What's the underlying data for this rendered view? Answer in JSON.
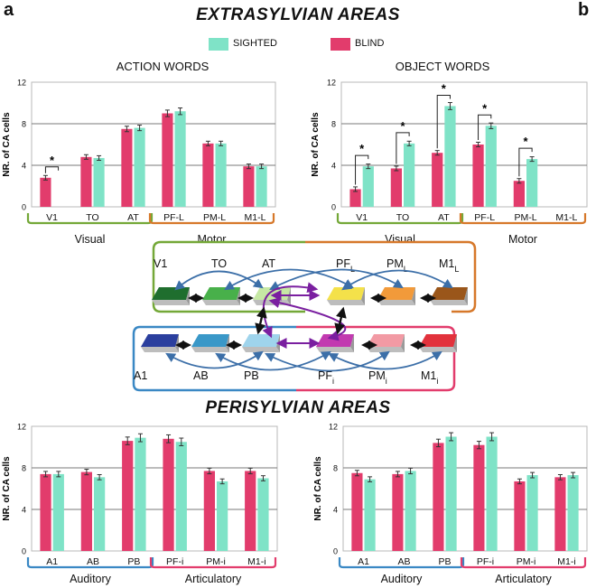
{
  "panel_labels": {
    "a": "a",
    "b": "b"
  },
  "titles": {
    "extrasylvian": "EXTRASYLVIAN AREAS",
    "perisylvian": "PERISYLVIAN AREAS"
  },
  "legend": {
    "sighted": "SIGHTED",
    "blind": "BLIND"
  },
  "colors": {
    "blind": "#e23c6c",
    "sighted": "#7fe3c7",
    "visual_group": "#74a838",
    "motor_group": "#d6782a",
    "auditory_group": "#3a88c4",
    "articulatory_group": "#e23c6c",
    "arrow_blue": "#3c6fa8",
    "arrow_purple": "#7a1fa0",
    "arrow_black": "#111111"
  },
  "chart_data": [
    {
      "type": "bar",
      "title": "ACTION WORDS",
      "ylabel": "NR. of CA cells",
      "ylim": [
        0,
        12
      ],
      "yticks": [
        0,
        4,
        8,
        12
      ],
      "categories": [
        "V1",
        "TO",
        "AT",
        "PF-L",
        "PM-L",
        "M1-L"
      ],
      "series": [
        {
          "name": "BLIND",
          "values": [
            2.8,
            4.8,
            7.5,
            9.0,
            6.1,
            3.9
          ]
        },
        {
          "name": "SIGHTED",
          "values": [
            0,
            4.7,
            7.6,
            9.2,
            6.1,
            3.9
          ]
        }
      ],
      "significance": [
        {
          "category": "V1",
          "label": "*"
        }
      ],
      "groups": [
        {
          "label": "Visual",
          "from": 0,
          "to": 2
        },
        {
          "label": "Motor",
          "from": 3,
          "to": 5
        }
      ]
    },
    {
      "type": "bar",
      "title": "OBJECT WORDS",
      "ylabel": "NR. of CA cells",
      "ylim": [
        0,
        12
      ],
      "yticks": [
        0,
        4,
        8,
        12
      ],
      "categories": [
        "V1",
        "TO",
        "AT",
        "PF-L",
        "PM-L",
        "M1-L"
      ],
      "series": [
        {
          "name": "BLIND",
          "values": [
            1.7,
            3.7,
            5.2,
            6.0,
            2.5,
            0
          ]
        },
        {
          "name": "SIGHTED",
          "values": [
            3.9,
            6.1,
            9.7,
            7.8,
            4.6,
            0
          ]
        }
      ],
      "significance": [
        {
          "category": "V1",
          "label": "*"
        },
        {
          "category": "TO",
          "label": "*"
        },
        {
          "category": "AT",
          "label": "*"
        },
        {
          "category": "PF-L",
          "label": "*"
        },
        {
          "category": "PM-L",
          "label": "*"
        }
      ],
      "groups": [
        {
          "label": "Visual",
          "from": 0,
          "to": 2
        },
        {
          "label": "Motor",
          "from": 3,
          "to": 5
        }
      ]
    },
    {
      "type": "bar",
      "title": "",
      "ylabel": "NR. of CA cells",
      "ylim": [
        0,
        12
      ],
      "yticks": [
        0,
        4,
        8,
        12
      ],
      "categories": [
        "A1",
        "AB",
        "PB",
        "PF-i",
        "PM-i",
        "M1-i"
      ],
      "series": [
        {
          "name": "BLIND",
          "values": [
            7.4,
            7.6,
            10.6,
            10.8,
            7.7,
            7.7
          ]
        },
        {
          "name": "SIGHTED",
          "values": [
            7.4,
            7.1,
            10.9,
            10.5,
            6.7,
            7.0
          ]
        }
      ],
      "significance": [],
      "groups": [
        {
          "label": "Auditory",
          "from": 0,
          "to": 2
        },
        {
          "label": "Articulatory",
          "from": 3,
          "to": 5
        }
      ]
    },
    {
      "type": "bar",
      "title": "",
      "ylabel": "NR. of CA cells",
      "ylim": [
        0,
        12
      ],
      "yticks": [
        0,
        4,
        8,
        12
      ],
      "categories": [
        "A1",
        "AB",
        "PB",
        "PF-i",
        "PM-i",
        "M1-i"
      ],
      "series": [
        {
          "name": "BLIND",
          "values": [
            7.5,
            7.4,
            10.4,
            10.2,
            6.7,
            7.1
          ]
        },
        {
          "name": "SIGHTED",
          "values": [
            6.9,
            7.7,
            11.0,
            11.0,
            7.3,
            7.3
          ]
        }
      ],
      "significance": [],
      "groups": [
        {
          "label": "Auditory",
          "from": 0,
          "to": 2
        },
        {
          "label": "Articulatory",
          "from": 3,
          "to": 5
        }
      ]
    }
  ],
  "diagram": {
    "top_row": [
      {
        "label": "V1",
        "sub": "",
        "color": "#1f6e2e"
      },
      {
        "label": "TO",
        "sub": "",
        "color": "#48b04a"
      },
      {
        "label": "AT",
        "sub": "",
        "color": "#c6e8a4"
      },
      {
        "label": "PF",
        "sub": "L",
        "color": "#f4e14a"
      },
      {
        "label": "PM",
        "sub": "L",
        "color": "#f29a3a"
      },
      {
        "label": "M1",
        "sub": "L",
        "color": "#9a561a"
      }
    ],
    "bottom_row": [
      {
        "label": "A1",
        "sub": "",
        "color": "#2b3f9e"
      },
      {
        "label": "AB",
        "sub": "",
        "color": "#3a98c8"
      },
      {
        "label": "PB",
        "sub": "",
        "color": "#9fd4ec"
      },
      {
        "label": "PF",
        "sub": "i",
        "color": "#c23ab0"
      },
      {
        "label": "PM",
        "sub": "i",
        "color": "#f29aa4"
      },
      {
        "label": "M1",
        "sub": "i",
        "color": "#e2323c"
      }
    ]
  }
}
